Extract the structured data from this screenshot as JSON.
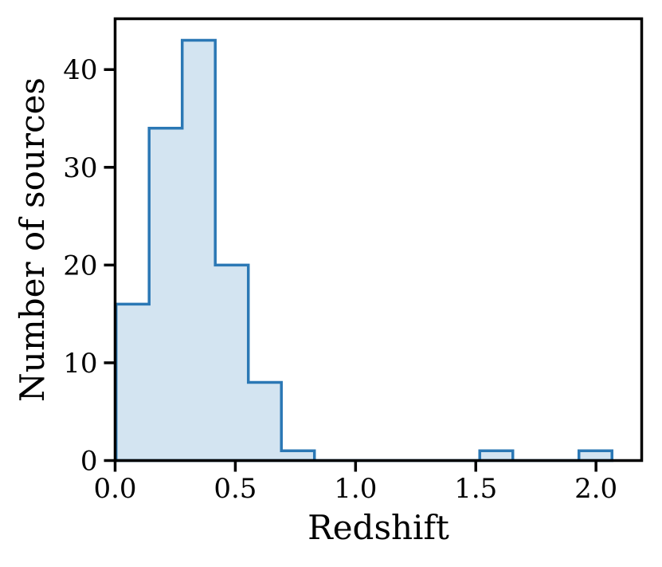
{
  "chart_data": {
    "type": "bar",
    "subtype": "histogram-stepfilled",
    "title": "",
    "xlabel": "Redshift",
    "ylabel": "Number of sources",
    "bin_start": 0.004,
    "bin_width": 0.1375,
    "counts": [
      16,
      34,
      43,
      20,
      8,
      1,
      0,
      0,
      0,
      0,
      0,
      1,
      0,
      0,
      1
    ],
    "xlim": [
      0,
      2.19
    ],
    "ylim": [
      0,
      45.2
    ],
    "xticks": [
      0.0,
      0.5,
      1.0,
      1.5,
      2.0
    ],
    "xtick_labels": [
      "0.0",
      "0.5",
      "1.0",
      "1.5",
      "2.0"
    ],
    "yticks": [
      0,
      10,
      20,
      30,
      40
    ],
    "ytick_labels": [
      "0",
      "10",
      "20",
      "30",
      "40"
    ],
    "grid": false,
    "legend_position": "none",
    "colors": {
      "fill": "#d3e4f1",
      "edge": "#2b78b5",
      "axis": "#000000",
      "text": "#000000",
      "background": "#ffffff"
    }
  }
}
